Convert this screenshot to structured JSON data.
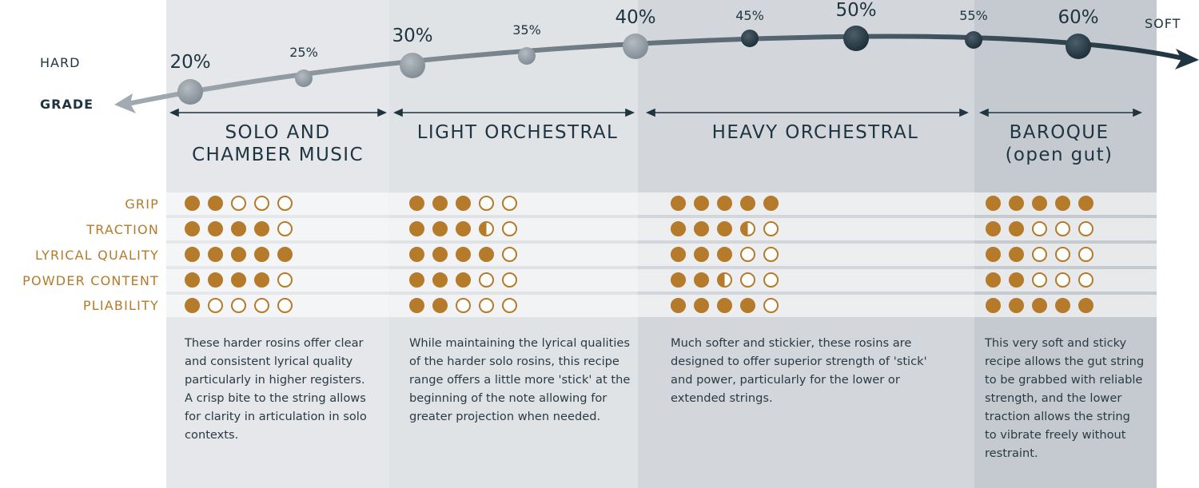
{
  "scale": {
    "hard_label": "HARD",
    "grade_label": "GRADE",
    "soft_label": "SOFT",
    "points": [
      {
        "label": "20%",
        "size": "big"
      },
      {
        "label": "25%",
        "size": "small"
      },
      {
        "label": "30%",
        "size": "big"
      },
      {
        "label": "35%",
        "size": "small"
      },
      {
        "label": "40%",
        "size": "big"
      },
      {
        "label": "45%",
        "size": "small"
      },
      {
        "label": "50%",
        "size": "big"
      },
      {
        "label": "55%",
        "size": "small"
      },
      {
        "label": "60%",
        "size": "big"
      }
    ]
  },
  "attributes": [
    "GRIP",
    "TRACTION",
    "LYRICAL QUALITY",
    "POWDER CONTENT",
    "PLIABILITY"
  ],
  "columns": [
    {
      "title_line1": "SOLO AND",
      "title_line2": "CHAMBER MUSIC",
      "ratings": [
        2,
        4,
        5,
        4,
        1
      ],
      "description": "These harder rosins offer clear and consistent lyrical quality particularly in higher registers. A crisp bite to the string allows for clarity in articulation in solo contexts."
    },
    {
      "title_line1": "LIGHT ORCHESTRAL",
      "title_line2": "",
      "ratings": [
        3,
        3.5,
        4,
        3,
        2
      ],
      "description": "While maintaining the lyrical qualities of the harder solo rosins, this recipe range offers a little more 'stick' at the beginning of the note allowing for greater projection when needed."
    },
    {
      "title_line1": "HEAVY ORCHESTRAL",
      "title_line2": "",
      "ratings": [
        5,
        3.5,
        3,
        2.5,
        4
      ],
      "description": "Much softer and stickier, these rosins are designed to offer superior strength of 'stick' and power, particularly for the lower or extended strings."
    },
    {
      "title_line1": "BAROQUE",
      "title_line2": "(open gut)",
      "ratings": [
        5,
        2,
        2,
        2,
        5
      ],
      "description": "This very soft and sticky recipe allows the gut string to be grabbed with reliable strength, and the lower traction allows the string to vibrate freely without restraint."
    }
  ],
  "colors": {
    "accent": "#b57a2a",
    "text_dark": "#1e3440",
    "arrow_light": "#9aa3ab",
    "arrow_dark": "#1e3440"
  }
}
